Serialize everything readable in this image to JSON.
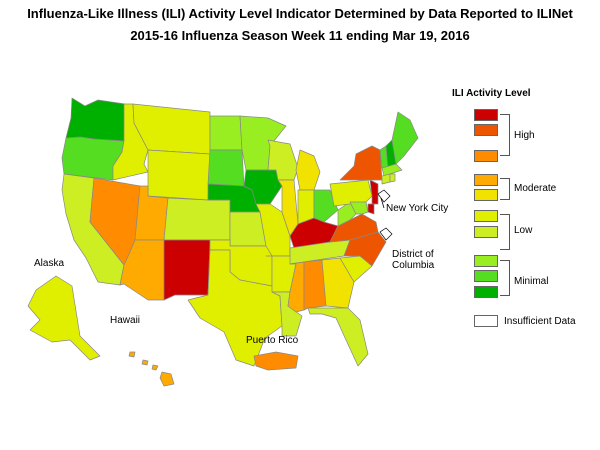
{
  "title": {
    "line1": "Influenza-Like Illness (ILI) Activity Level Indicator Determined by Data Reported to ILINet",
    "line2": "2015-16  Influenza Season Week  11 ending Mar 19, 2016"
  },
  "legend": {
    "title": "ILI Activity Level",
    "levels": [
      {
        "level": 10,
        "color": "#cc0000"
      },
      {
        "level": 9,
        "color": "#ee5500"
      },
      {
        "level": 8,
        "color": "#ff8c00"
      },
      {
        "level": 7,
        "color": "#ffaa00"
      },
      {
        "level": 6,
        "color": "#f2e200"
      },
      {
        "level": 5,
        "color": "#e0ee00"
      },
      {
        "level": 4,
        "color": "#ccee22"
      },
      {
        "level": 3,
        "color": "#99ee22"
      },
      {
        "level": 2,
        "color": "#55dd22"
      },
      {
        "level": 1,
        "color": "#00b000"
      },
      {
        "level": 0,
        "color": "#ffffff"
      }
    ],
    "groups": {
      "high": "High",
      "moderate": "Moderate",
      "low": "Low",
      "minimal": "Minimal",
      "insufficient": "Insufficient Data"
    }
  },
  "labels": {
    "alaska": "Alaska",
    "hawaii": "Hawaii",
    "puerto_rico": "Puerto Rico",
    "nyc": "New York City",
    "dc_line1": "District of",
    "dc_line2": "Columbia"
  },
  "states": {
    "WA": 1,
    "OR": 2,
    "CA": 4,
    "NV": 8,
    "ID": 5,
    "MT": 5,
    "WY": 5,
    "UT": 7,
    "AZ": 7,
    "CO": 4,
    "NM": 10,
    "ND": 3,
    "SD": 2,
    "NE": 1,
    "KS": 4,
    "OK": 5,
    "TX": 5,
    "MN": 3,
    "IA": 1,
    "MO": 5,
    "AR": 5,
    "LA": 4,
    "WI": 4,
    "IL": 6,
    "MI": 6,
    "IN": 5,
    "OH": 2,
    "KY": 10,
    "TN": 4,
    "MS": 7,
    "AL": 8,
    "GA": 6,
    "FL": 4,
    "SC": 5,
    "NC": 9,
    "VA": 9,
    "WV": 3,
    "PA": 5,
    "NY": 9,
    "VT": 2,
    "NH": 1,
    "ME": 2,
    "MA": 3,
    "NJ": 10,
    "DE": 10,
    "MD": 3,
    "CT": 4,
    "RI": 4,
    "AK": 5,
    "HI": 7,
    "PR": 8,
    "NYC": 0,
    "DC": 0
  }
}
